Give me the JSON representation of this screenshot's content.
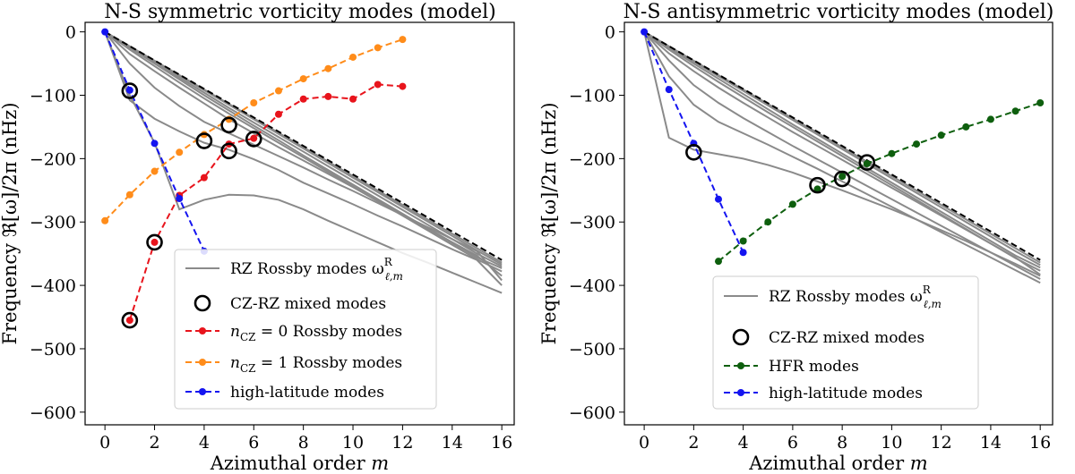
{
  "chart_data": [
    {
      "type": "line",
      "title": "N-S symmetric vorticity modes (model)",
      "xlabel": "Azimuthal order m",
      "ylabel": "Frequency ℜ[ω]/2π (nHz)",
      "xlim": [
        -0.8,
        16.5
      ],
      "ylim": [
        -620,
        15
      ],
      "xticks": [
        0,
        2,
        4,
        6,
        8,
        10,
        12,
        14,
        16
      ],
      "yticks": [
        0,
        -100,
        -200,
        -300,
        -400,
        -500,
        -600
      ],
      "ytick_labels": [
        "0",
        "−100",
        "−200",
        "−300",
        "−400",
        "−500",
        "−600"
      ],
      "legend_position": "lower-center",
      "legend": [
        {
          "label": "RZ Rossby modes ω^R_{ℓ,m}",
          "main": "RZ Rossby modes ω",
          "sup": "R",
          "sub": "ℓ,m",
          "style": "gray-line"
        },
        {
          "label": "CZ-RZ mixed modes",
          "style": "circle"
        },
        {
          "label": "n_CZ = 0 Rossby modes",
          "main": "n",
          "sub": "CZ",
          "rest": " = 0 Rossby modes",
          "style": "red"
        },
        {
          "label": "n_CZ = 1 Rossby modes",
          "main": "n",
          "sub": "CZ",
          "rest": " = 1 Rossby modes",
          "style": "orange"
        },
        {
          "label": "high-latitude modes",
          "style": "blue"
        }
      ],
      "envelope": {
        "name": "RZ Rossby upper bound",
        "x": [
          0,
          16
        ],
        "y": [
          0,
          -360
        ]
      },
      "rz_lines": [
        {
          "name": "RZ mode 1",
          "x": [
            0,
            1,
            2,
            3,
            4,
            5,
            6,
            7,
            8,
            9,
            10,
            11,
            12,
            13,
            14,
            15,
            16
          ],
          "y": [
            0,
            -100,
            -175,
            -280,
            -265,
            -257,
            -258,
            -265,
            -280,
            -298,
            -315,
            -332,
            -349,
            -364,
            -380,
            -396,
            -412
          ]
        },
        {
          "name": "RZ mode 2",
          "x": [
            0,
            1,
            2,
            3,
            4,
            5,
            6,
            7,
            8,
            9,
            10,
            11,
            12,
            13,
            14,
            15,
            16
          ],
          "y": [
            0,
            -108,
            -137,
            -157,
            -175,
            -186,
            -201,
            -218,
            -238,
            -255,
            -272,
            -290,
            -307,
            -325,
            -343,
            -360,
            -400
          ]
        },
        {
          "name": "RZ mode 3",
          "x": [
            0,
            1,
            2,
            3,
            4,
            5,
            6,
            7,
            8,
            9,
            10,
            11,
            12,
            13,
            14,
            15,
            16
          ],
          "y": [
            0,
            -50,
            -88,
            -117,
            -142,
            -160,
            -178,
            -196,
            -214,
            -233,
            -251,
            -270,
            -289,
            -308,
            -327,
            -346,
            -392
          ]
        },
        {
          "name": "RZ mode 4",
          "x": [
            0,
            1,
            2,
            3,
            4,
            5,
            6,
            7,
            8,
            9,
            10,
            11,
            12,
            13,
            14,
            15,
            16
          ],
          "y": [
            0,
            -35,
            -62,
            -88,
            -113,
            -138,
            -160,
            -182,
            -203,
            -224,
            -245,
            -267,
            -289,
            -310,
            -332,
            -353,
            -385
          ]
        },
        {
          "name": "RZ mode 5",
          "x": [
            0,
            1,
            2,
            3,
            4,
            5,
            6,
            7,
            8,
            9,
            10,
            11,
            12,
            13,
            14,
            15,
            16
          ],
          "y": [
            0,
            -28,
            -54,
            -80,
            -105,
            -129,
            -152,
            -175,
            -198,
            -221,
            -244,
            -267,
            -290,
            -313,
            -336,
            -359,
            -378
          ]
        },
        {
          "name": "RZ mode 6",
          "x": [
            0,
            1,
            2,
            3,
            4,
            5,
            6,
            7,
            8,
            9,
            10,
            11,
            12,
            13,
            14,
            15,
            16
          ],
          "y": [
            0,
            -25,
            -50,
            -75,
            -100,
            -124,
            -148,
            -171,
            -195,
            -218,
            -241,
            -264,
            -287,
            -310,
            -333,
            -356,
            -373
          ]
        },
        {
          "name": "RZ mode 7",
          "x": [
            0,
            1,
            2,
            3,
            4,
            5,
            6,
            7,
            8,
            9,
            10,
            11,
            12,
            13,
            14,
            15,
            16
          ],
          "y": [
            0,
            -24,
            -48,
            -72,
            -96,
            -120,
            -143,
            -166,
            -189,
            -212,
            -235,
            -258,
            -281,
            -304,
            -327,
            -350,
            -370
          ]
        },
        {
          "name": "RZ mode 8",
          "x": [
            0,
            1,
            2,
            3,
            4,
            5,
            6,
            7,
            8,
            9,
            10,
            11,
            12,
            13,
            14,
            15,
            16
          ],
          "y": [
            0,
            -23,
            -46,
            -69,
            -92,
            -115,
            -138,
            -161,
            -184,
            -207,
            -230,
            -253,
            -276,
            -299,
            -322,
            -345,
            -367
          ]
        },
        {
          "name": "RZ mode 9",
          "x": [
            0,
            1,
            2,
            3,
            4,
            5,
            6,
            7,
            8,
            9,
            10,
            11,
            12,
            13,
            14,
            15,
            16
          ],
          "y": [
            0,
            -22.8,
            -45.5,
            -68.3,
            -91,
            -113.8,
            -136.5,
            -159.3,
            -182,
            -204.8,
            -227.5,
            -250.3,
            -273,
            -295.8,
            -318.5,
            -341.3,
            -364
          ]
        }
      ],
      "series": [
        {
          "name": "n_CZ = 0 Rossby modes",
          "color": "#e8141c",
          "x": [
            1,
            2,
            3,
            4,
            5,
            6,
            7,
            8,
            9,
            10,
            11,
            12
          ],
          "y": [
            -455,
            -332,
            -258,
            -230,
            -177,
            -168,
            -130,
            -106,
            -102,
            -106,
            -83,
            -86
          ]
        },
        {
          "name": "n_CZ = 1 Rossby modes",
          "color": "#ff8c1a",
          "x": [
            0,
            1,
            2,
            3,
            4,
            5,
            6,
            7,
            8,
            9,
            10,
            11,
            12
          ],
          "y": [
            -298,
            -257,
            -220,
            -190,
            -162,
            -138,
            -112,
            -93,
            -74,
            -58,
            -40,
            -25,
            -12
          ]
        },
        {
          "name": "high-latitude modes",
          "color": "#1414f0",
          "x": [
            0,
            1,
            2,
            3,
            4
          ],
          "y": [
            0,
            -92,
            -176,
            -263,
            -346
          ]
        }
      ],
      "mixed_modes": {
        "x": [
          1,
          1,
          2,
          4,
          5,
          5,
          6
        ],
        "y": [
          -93,
          -455,
          -332,
          -172,
          -147,
          -188,
          -169
        ]
      }
    },
    {
      "type": "line",
      "title": "N-S antisymmetric vorticity modes (model)",
      "xlabel": "Azimuthal order m",
      "ylabel": "Frequency ℜ[ω]/2π (nHz)",
      "xlim": [
        -0.8,
        16.5
      ],
      "ylim": [
        -620,
        15
      ],
      "xticks": [
        0,
        2,
        4,
        6,
        8,
        10,
        12,
        14,
        16
      ],
      "yticks": [
        0,
        -100,
        -200,
        -300,
        -400,
        -500,
        -600
      ],
      "ytick_labels": [
        "0",
        "−100",
        "−200",
        "−300",
        "−400",
        "−500",
        "−600"
      ],
      "legend_position": "lower-center",
      "legend": [
        {
          "label": "RZ Rossby modes ω^R_{ℓ,m}",
          "main": "RZ Rossby modes ω",
          "sup": "R",
          "sub": "ℓ,m",
          "style": "gray-line"
        },
        {
          "label": "CZ-RZ mixed modes",
          "style": "circle"
        },
        {
          "label": "HFR modes",
          "style": "green"
        },
        {
          "label": "high-latitude modes",
          "style": "blue"
        }
      ],
      "envelope": {
        "name": "RZ Rossby upper bound",
        "x": [
          0,
          16
        ],
        "y": [
          0,
          -360
        ]
      },
      "rz_lines": [
        {
          "name": "RZ mode 1",
          "x": [
            0,
            1,
            2,
            3,
            4,
            5,
            6,
            7,
            8,
            9,
            10,
            11,
            12,
            13,
            14,
            15,
            16
          ],
          "y": [
            0,
            -167,
            -186,
            -193,
            -200,
            -210,
            -222,
            -236,
            -250,
            -265,
            -280,
            -296,
            -313,
            -330,
            -348,
            -366,
            -385
          ]
        },
        {
          "name": "RZ mode 2",
          "x": [
            0,
            1,
            2,
            3,
            4,
            5,
            6,
            7,
            8,
            9,
            10,
            11,
            12,
            13,
            14,
            15,
            16
          ],
          "y": [
            0,
            -70,
            -115,
            -142,
            -160,
            -178,
            -197,
            -216,
            -236,
            -256,
            -276,
            -296,
            -316,
            -336,
            -356,
            -376,
            -396
          ]
        },
        {
          "name": "RZ mode 3",
          "x": [
            0,
            1,
            2,
            3,
            4,
            5,
            6,
            7,
            8,
            9,
            10,
            11,
            12,
            13,
            14,
            15,
            16
          ],
          "y": [
            0,
            -45,
            -84,
            -112,
            -136,
            -158,
            -180,
            -201,
            -222,
            -243,
            -264,
            -285,
            -306,
            -327,
            -348,
            -369,
            -390
          ]
        },
        {
          "name": "RZ mode 4",
          "x": [
            0,
            1,
            2,
            3,
            4,
            5,
            6,
            7,
            8,
            9,
            10,
            11,
            12,
            13,
            14,
            15,
            16
          ],
          "y": [
            0,
            -34,
            -62,
            -88,
            -112,
            -135,
            -158,
            -180,
            -202,
            -224,
            -246,
            -268,
            -290,
            -312,
            -334,
            -356,
            -383
          ]
        },
        {
          "name": "RZ mode 5",
          "x": [
            0,
            1,
            2,
            3,
            4,
            5,
            6,
            7,
            8,
            9,
            10,
            11,
            12,
            13,
            14,
            15,
            16
          ],
          "y": [
            0,
            -28,
            -54,
            -79,
            -103,
            -127,
            -150,
            -173,
            -196,
            -219,
            -242,
            -265,
            -288,
            -311,
            -334,
            -357,
            -377
          ]
        },
        {
          "name": "RZ mode 6",
          "x": [
            0,
            1,
            2,
            3,
            4,
            5,
            6,
            7,
            8,
            9,
            10,
            11,
            12,
            13,
            14,
            15,
            16
          ],
          "y": [
            0,
            -25,
            -50,
            -74,
            -98,
            -122,
            -146,
            -169,
            -192,
            -215,
            -238,
            -261,
            -284,
            -307,
            -330,
            -353,
            -372
          ]
        },
        {
          "name": "RZ mode 7",
          "x": [
            0,
            1,
            2,
            3,
            4,
            5,
            6,
            7,
            8,
            9,
            10,
            11,
            12,
            13,
            14,
            15,
            16
          ],
          "y": [
            0,
            -24,
            -47,
            -70,
            -93,
            -116,
            -139,
            -162,
            -185,
            -208,
            -231,
            -254,
            -277,
            -300,
            -323,
            -346,
            -368
          ]
        },
        {
          "name": "RZ mode 8",
          "x": [
            0,
            1,
            2,
            3,
            4,
            5,
            6,
            7,
            8,
            9,
            10,
            11,
            12,
            13,
            14,
            15,
            16
          ],
          "y": [
            0,
            -22.8,
            -45.5,
            -68.3,
            -91,
            -113.8,
            -136.5,
            -159.3,
            -182,
            -204.8,
            -227.5,
            -250.3,
            -273,
            -295.8,
            -318.5,
            -341.3,
            -364
          ]
        }
      ],
      "series": [
        {
          "name": "HFR modes",
          "color": "#0e5f0e",
          "x": [
            3,
            4,
            5,
            6,
            7,
            8,
            9,
            10,
            11,
            12,
            13,
            14,
            15,
            16
          ],
          "y": [
            -362,
            -330,
            -300,
            -272,
            -248,
            -228,
            -208,
            -192,
            -177,
            -163,
            -150,
            -138,
            -125,
            -112
          ]
        },
        {
          "name": "high-latitude modes",
          "color": "#1414f0",
          "x": [
            0,
            1,
            2,
            3,
            4
          ],
          "y": [
            0,
            -91,
            -176,
            -264,
            -348
          ]
        }
      ],
      "mixed_modes": {
        "x": [
          2,
          7,
          8,
          9
        ],
        "y": [
          -190,
          -242,
          -232,
          -206
        ]
      }
    }
  ]
}
